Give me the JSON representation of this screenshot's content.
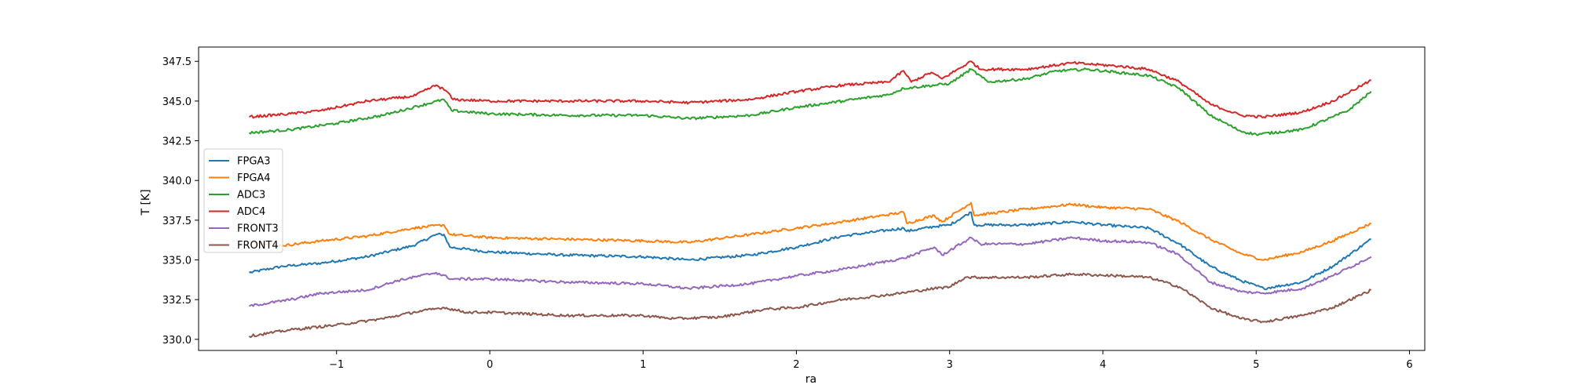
{
  "chart_data": {
    "type": "line",
    "xlabel": "ra",
    "ylabel": "T [K]",
    "xlim": [
      -1.9,
      6.1
    ],
    "ylim": [
      329.3,
      348.4
    ],
    "xticks": [
      -1,
      0,
      1,
      2,
      3,
      4,
      5,
      6
    ],
    "xtick_labels": [
      "−1",
      "0",
      "1",
      "2",
      "3",
      "4",
      "5",
      "6"
    ],
    "yticks": [
      330.0,
      332.5,
      335.0,
      337.5,
      340.0,
      342.5,
      345.0,
      347.5
    ],
    "ytick_labels": [
      "330.0",
      "332.5",
      "335.0",
      "337.5",
      "340.0",
      "342.5",
      "345.0",
      "347.5"
    ],
    "legend_position": "center-left",
    "grid": false,
    "series": [
      {
        "name": "FPGA3",
        "color": "#1f77b4",
        "points": [
          [
            -1.57,
            334.2
          ],
          [
            -1.35,
            334.6
          ],
          [
            -1.1,
            334.8
          ],
          [
            -0.8,
            335.2
          ],
          [
            -0.5,
            335.9
          ],
          [
            -0.35,
            336.6
          ],
          [
            -0.3,
            336.6
          ],
          [
            -0.26,
            335.8
          ],
          [
            0,
            335.5
          ],
          [
            0.5,
            335.3
          ],
          [
            1.0,
            335.2
          ],
          [
            1.3,
            335.0
          ],
          [
            1.7,
            335.3
          ],
          [
            2.0,
            335.8
          ],
          [
            2.3,
            336.5
          ],
          [
            2.7,
            337.0
          ],
          [
            2.72,
            336.8
          ],
          [
            2.9,
            337.1
          ],
          [
            3.0,
            337.2
          ],
          [
            3.14,
            338.0
          ],
          [
            3.16,
            337.2
          ],
          [
            3.5,
            337.2
          ],
          [
            3.8,
            337.4
          ],
          [
            4.0,
            337.2
          ],
          [
            4.3,
            337.0
          ],
          [
            4.5,
            336.0
          ],
          [
            4.7,
            334.6
          ],
          [
            4.9,
            333.7
          ],
          [
            5.05,
            333.2
          ],
          [
            5.3,
            333.6
          ],
          [
            5.5,
            334.6
          ],
          [
            5.75,
            336.3
          ]
        ]
      },
      {
        "name": "FPGA4",
        "color": "#ff7f0e",
        "points": [
          [
            -1.57,
            336.2
          ],
          [
            -1.35,
            335.9
          ],
          [
            -1.1,
            336.2
          ],
          [
            -0.8,
            336.5
          ],
          [
            -0.5,
            337.0
          ],
          [
            -0.3,
            337.2
          ],
          [
            -0.26,
            336.6
          ],
          [
            0,
            336.4
          ],
          [
            0.5,
            336.3
          ],
          [
            1.0,
            336.2
          ],
          [
            1.3,
            336.1
          ],
          [
            1.7,
            336.6
          ],
          [
            2.0,
            337.0
          ],
          [
            2.3,
            337.4
          ],
          [
            2.7,
            338.0
          ],
          [
            2.72,
            337.3
          ],
          [
            2.9,
            337.8
          ],
          [
            2.95,
            337.4
          ],
          [
            3.14,
            338.6
          ],
          [
            3.16,
            337.8
          ],
          [
            3.5,
            338.2
          ],
          [
            3.8,
            338.5
          ],
          [
            4.0,
            338.3
          ],
          [
            4.3,
            338.2
          ],
          [
            4.5,
            337.4
          ],
          [
            4.7,
            336.3
          ],
          [
            4.9,
            335.4
          ],
          [
            5.05,
            335.0
          ],
          [
            5.3,
            335.5
          ],
          [
            5.5,
            336.2
          ],
          [
            5.75,
            337.3
          ]
        ]
      },
      {
        "name": "ADC3",
        "color": "#2ca02c",
        "points": [
          [
            -1.57,
            343.0
          ],
          [
            -1.3,
            343.2
          ],
          [
            -1.0,
            343.6
          ],
          [
            -0.7,
            344.1
          ],
          [
            -0.5,
            344.6
          ],
          [
            -0.3,
            345.1
          ],
          [
            -0.25,
            344.4
          ],
          [
            0,
            344.2
          ],
          [
            0.5,
            344.1
          ],
          [
            1.0,
            344.1
          ],
          [
            1.3,
            343.9
          ],
          [
            1.7,
            344.1
          ],
          [
            2.0,
            344.6
          ],
          [
            2.3,
            345.0
          ],
          [
            2.6,
            345.4
          ],
          [
            2.7,
            345.8
          ],
          [
            3.0,
            346.1
          ],
          [
            3.14,
            347.0
          ],
          [
            3.25,
            346.2
          ],
          [
            3.5,
            346.4
          ],
          [
            3.7,
            346.9
          ],
          [
            3.9,
            347.0
          ],
          [
            4.1,
            346.8
          ],
          [
            4.3,
            346.6
          ],
          [
            4.5,
            345.8
          ],
          [
            4.7,
            344.1
          ],
          [
            4.9,
            343.1
          ],
          [
            5.0,
            342.9
          ],
          [
            5.3,
            343.2
          ],
          [
            5.5,
            344.0
          ],
          [
            5.6,
            344.4
          ],
          [
            5.75,
            345.6
          ]
        ]
      },
      {
        "name": "ADC4",
        "color": "#d62728",
        "points": [
          [
            -1.57,
            344.0
          ],
          [
            -1.3,
            344.2
          ],
          [
            -1.1,
            344.4
          ],
          [
            -0.9,
            344.8
          ],
          [
            -0.8,
            345.0
          ],
          [
            -0.5,
            345.3
          ],
          [
            -0.35,
            346.0
          ],
          [
            -0.28,
            345.6
          ],
          [
            -0.24,
            345.1
          ],
          [
            0,
            345.0
          ],
          [
            0.5,
            345.0
          ],
          [
            1.0,
            345.0
          ],
          [
            1.3,
            344.9
          ],
          [
            1.7,
            345.1
          ],
          [
            2.0,
            345.6
          ],
          [
            2.3,
            346.0
          ],
          [
            2.6,
            346.2
          ],
          [
            2.7,
            346.9
          ],
          [
            2.75,
            346.2
          ],
          [
            2.88,
            346.8
          ],
          [
            2.95,
            346.4
          ],
          [
            3.14,
            347.5
          ],
          [
            3.2,
            347.0
          ],
          [
            3.5,
            347.0
          ],
          [
            3.8,
            347.4
          ],
          [
            4.1,
            347.2
          ],
          [
            4.3,
            347.0
          ],
          [
            4.5,
            346.2
          ],
          [
            4.7,
            344.8
          ],
          [
            4.9,
            344.1
          ],
          [
            5.05,
            344.0
          ],
          [
            5.3,
            344.3
          ],
          [
            5.5,
            345.0
          ],
          [
            5.75,
            346.3
          ]
        ]
      },
      {
        "name": "FRONT3",
        "color": "#9467bd",
        "points": [
          [
            -1.57,
            332.1
          ],
          [
            -1.3,
            332.5
          ],
          [
            -1.1,
            332.9
          ],
          [
            -0.8,
            333.1
          ],
          [
            -0.6,
            333.7
          ],
          [
            -0.35,
            334.2
          ],
          [
            -0.25,
            333.8
          ],
          [
            0,
            333.8
          ],
          [
            0.5,
            333.6
          ],
          [
            1.0,
            333.5
          ],
          [
            1.3,
            333.2
          ],
          [
            1.7,
            333.5
          ],
          [
            2.0,
            334.0
          ],
          [
            2.3,
            334.4
          ],
          [
            2.7,
            335.1
          ],
          [
            2.9,
            335.8
          ],
          [
            2.95,
            335.3
          ],
          [
            3.14,
            336.4
          ],
          [
            3.2,
            336.0
          ],
          [
            3.5,
            336.0
          ],
          [
            3.8,
            336.4
          ],
          [
            4.0,
            336.2
          ],
          [
            4.3,
            336.1
          ],
          [
            4.5,
            335.3
          ],
          [
            4.7,
            333.6
          ],
          [
            4.9,
            333.0
          ],
          [
            5.05,
            332.9
          ],
          [
            5.3,
            333.2
          ],
          [
            5.5,
            334.0
          ],
          [
            5.75,
            335.2
          ]
        ]
      },
      {
        "name": "FRONT4",
        "color": "#8c564b",
        "points": [
          [
            -1.57,
            330.2
          ],
          [
            -1.3,
            330.6
          ],
          [
            -1.0,
            330.9
          ],
          [
            -0.7,
            331.3
          ],
          [
            -0.5,
            331.7
          ],
          [
            -0.3,
            332.0
          ],
          [
            -0.15,
            331.7
          ],
          [
            0,
            331.7
          ],
          [
            0.5,
            331.5
          ],
          [
            1.0,
            331.5
          ],
          [
            1.2,
            331.3
          ],
          [
            1.5,
            331.4
          ],
          [
            1.8,
            331.9
          ],
          [
            2.0,
            332.0
          ],
          [
            2.3,
            332.5
          ],
          [
            2.6,
            332.8
          ],
          [
            2.9,
            333.2
          ],
          [
            3.0,
            333.3
          ],
          [
            3.1,
            333.9
          ],
          [
            3.5,
            333.9
          ],
          [
            3.8,
            334.1
          ],
          [
            4.1,
            334.0
          ],
          [
            4.3,
            333.9
          ],
          [
            4.5,
            333.3
          ],
          [
            4.7,
            332.0
          ],
          [
            4.9,
            331.3
          ],
          [
            5.05,
            331.1
          ],
          [
            5.3,
            331.5
          ],
          [
            5.5,
            332.0
          ],
          [
            5.75,
            333.1
          ]
        ]
      }
    ]
  }
}
